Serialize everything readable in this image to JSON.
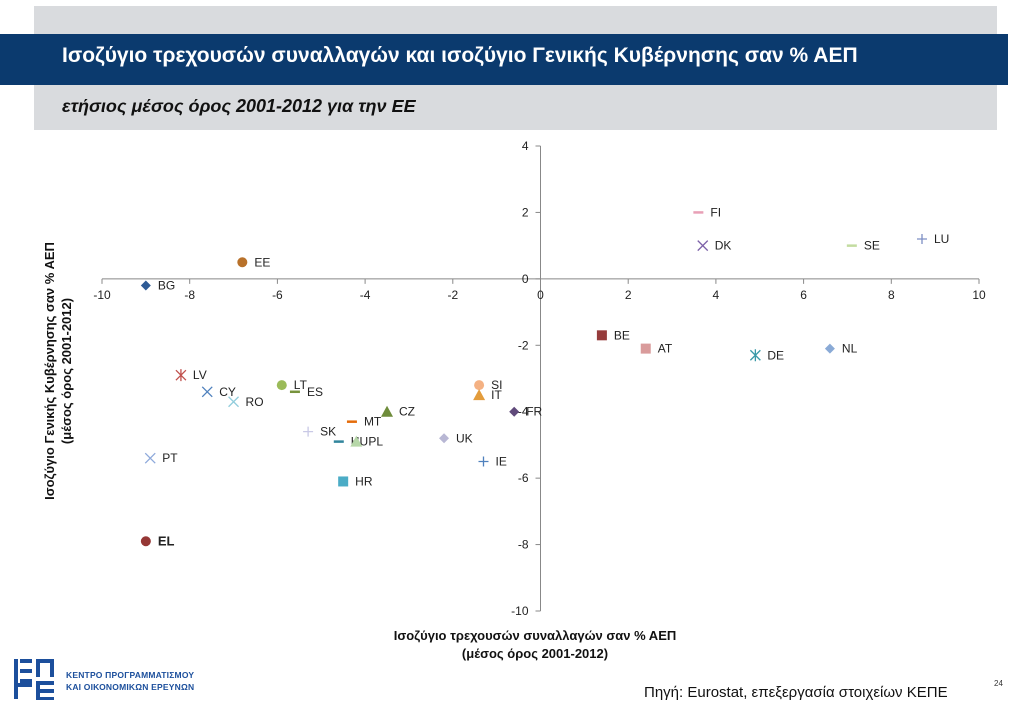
{
  "header": {
    "title": "Ισοζύγιο τρεχουσών συναλλαγών και ισοζύγιο Γενικής Κυβέρνησης σαν % ΑΕΠ",
    "subtitle": "ετήσιος μέσος όρος 2001-2012 για την ΕΕ"
  },
  "chart_data": {
    "type": "scatter",
    "xlabel_line1": "Ισοζύγιο τρεχουσών συναλλαγών σαν % ΑΕΠ",
    "xlabel_line2": "(μέσος όρος 2001-2012)",
    "ylabel_line1": "Ισοζύγιο Γενικής Κυβέρνησης σαν % ΑΕΠ",
    "ylabel_line2": "(μέσος όρος 2001-2012)",
    "xlim": [
      -10,
      10
    ],
    "ylim": [
      -10,
      4
    ],
    "x_ticks": [
      -10,
      -8,
      -6,
      -4,
      -2,
      0,
      2,
      4,
      6,
      8,
      10
    ],
    "y_ticks": [
      4,
      2,
      0,
      -2,
      -4,
      -6,
      -8,
      -10
    ],
    "grid": false,
    "points": [
      {
        "label": "FI",
        "x": 3.6,
        "y": 2.0,
        "marker": "dash",
        "color": "#e8a0b6"
      },
      {
        "label": "LU",
        "x": 8.7,
        "y": 1.2,
        "marker": "plus",
        "color": "#7d8fc4"
      },
      {
        "label": "SE",
        "x": 7.1,
        "y": 1.0,
        "marker": "dash",
        "color": "#c3dca0"
      },
      {
        "label": "DK",
        "x": 3.7,
        "y": 1.0,
        "marker": "x",
        "color": "#7d62a8"
      },
      {
        "label": "EE",
        "x": -6.8,
        "y": 0.5,
        "marker": "circle",
        "color": "#b8712a"
      },
      {
        "label": "BG",
        "x": -9.0,
        "y": -0.2,
        "marker": "diamond",
        "color": "#2e5b96"
      },
      {
        "label": "BE",
        "x": 1.4,
        "y": -1.7,
        "marker": "square",
        "color": "#963c3c"
      },
      {
        "label": "AT",
        "x": 2.4,
        "y": -2.1,
        "marker": "square",
        "color": "#d99b9b"
      },
      {
        "label": "NL",
        "x": 6.6,
        "y": -2.1,
        "marker": "diamond",
        "color": "#8aaad6"
      },
      {
        "label": "DE",
        "x": 4.9,
        "y": -2.3,
        "marker": "asterisk",
        "color": "#3a9aa8"
      },
      {
        "label": "LV",
        "x": -8.2,
        "y": -2.9,
        "marker": "asterisk",
        "color": "#c0504d"
      },
      {
        "label": "CY",
        "x": -7.6,
        "y": -3.4,
        "marker": "x",
        "color": "#4f81bd"
      },
      {
        "label": "RO",
        "x": -7.0,
        "y": -3.7,
        "marker": "x",
        "color": "#92cddc"
      },
      {
        "label": "LT",
        "x": -5.9,
        "y": -3.2,
        "marker": "circle",
        "color": "#9bbb59"
      },
      {
        "label": "ES",
        "x": -5.6,
        "y": -3.4,
        "marker": "dash",
        "color": "#77933c"
      },
      {
        "label": "SI",
        "x": -1.4,
        "y": -3.2,
        "marker": "circle",
        "color": "#f4b183"
      },
      {
        "label": "IT",
        "x": -1.4,
        "y": -3.5,
        "marker": "triangle",
        "color": "#e39c3c"
      },
      {
        "label": "CZ",
        "x": -3.5,
        "y": -4.0,
        "marker": "triangle",
        "color": "#6e8c3a"
      },
      {
        "label": "FR",
        "x": -0.6,
        "y": -4.0,
        "marker": "diamond",
        "color": "#604a7b"
      },
      {
        "label": "MT",
        "x": -4.3,
        "y": -4.3,
        "marker": "dash",
        "color": "#e46c0a"
      },
      {
        "label": "SK",
        "x": -5.3,
        "y": -4.6,
        "marker": "plus",
        "color": "#c9c9e6"
      },
      {
        "label": "HU",
        "x": -4.6,
        "y": -4.9,
        "marker": "dash",
        "color": "#31859c"
      },
      {
        "label": "PL",
        "x": -4.2,
        "y": -4.9,
        "marker": "triangle",
        "color": "#b6d7a8"
      },
      {
        "label": "UK",
        "x": -2.2,
        "y": -4.8,
        "marker": "diamond",
        "color": "#b8b7d4"
      },
      {
        "label": "IE",
        "x": -1.3,
        "y": -5.5,
        "marker": "plus",
        "color": "#4f81bd"
      },
      {
        "label": "PT",
        "x": -8.9,
        "y": -5.4,
        "marker": "x",
        "color": "#8ea9db"
      },
      {
        "label": "HR",
        "x": -4.5,
        "y": -6.1,
        "marker": "square",
        "color": "#4bacc6"
      },
      {
        "label": "EL",
        "x": -9.0,
        "y": -7.9,
        "marker": "circle",
        "color": "#953735"
      }
    ],
    "fr_tick_label": "-4"
  },
  "footer": {
    "source": "Πηγή: Eurostat, επεξεργασία στοιχείων ΚΕΠΕ",
    "page_number": "24",
    "logo_line1": "ΚΕΝΤΡΟ ΠΡΟΓΡΑΜΜΑΤΙΣΜΟΥ",
    "logo_line2": "ΚΑΙ ΟΙΚΟΝΟΜΙΚΩΝ ΕΡΕΥΝΩΝ"
  }
}
